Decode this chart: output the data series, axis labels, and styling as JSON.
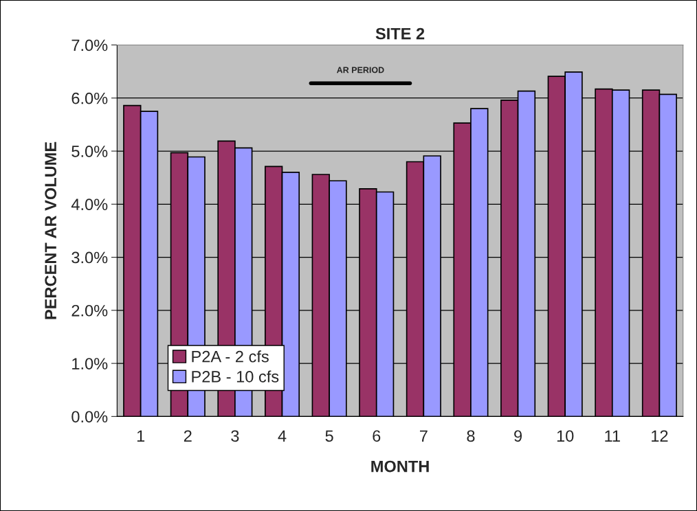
{
  "chart_data": {
    "type": "bar",
    "title": "SITE 2",
    "xlabel": "MONTH",
    "ylabel": "PERCENT AR VOLUME",
    "categories": [
      "1",
      "2",
      "3",
      "4",
      "5",
      "6",
      "7",
      "8",
      "9",
      "10",
      "11",
      "12"
    ],
    "series": [
      {
        "name": "P2A - 2 cfs",
        "color": "#993366",
        "values": [
          5.86,
          4.97,
          5.19,
          4.71,
          4.56,
          4.29,
          4.8,
          5.53,
          5.96,
          6.41,
          6.17,
          6.15
        ]
      },
      {
        "name": "P2B - 10 cfs",
        "color": "#9999ff",
        "values": [
          5.75,
          4.89,
          5.06,
          4.6,
          4.44,
          4.23,
          4.91,
          5.8,
          6.13,
          6.49,
          6.15,
          6.07
        ]
      }
    ],
    "ylim": [
      0,
      7
    ],
    "yticks": [
      {
        "value": 0,
        "label": "0.0%"
      },
      {
        "value": 1,
        "label": "1.0%"
      },
      {
        "value": 2,
        "label": "2.0%"
      },
      {
        "value": 3,
        "label": "3.0%"
      },
      {
        "value": 4,
        "label": "4.0%"
      },
      {
        "value": 5,
        "label": "5.0%"
      },
      {
        "value": 6,
        "label": "6.0%"
      },
      {
        "value": 7,
        "label": "7.0%"
      }
    ],
    "annotations": [
      "AR PERIOD"
    ],
    "grid": "y",
    "legend": "bottom left"
  }
}
